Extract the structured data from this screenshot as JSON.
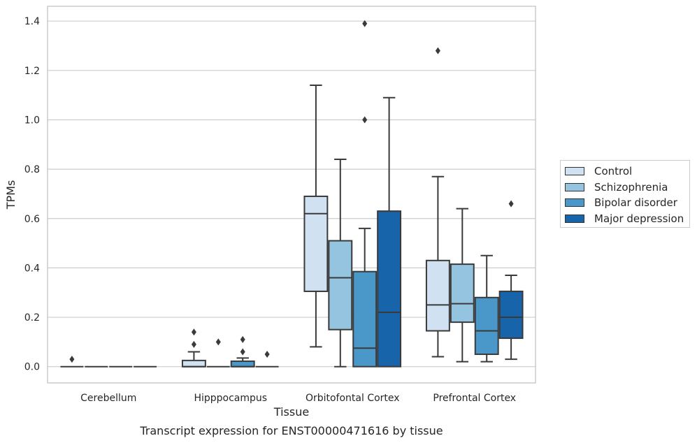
{
  "chart_data": {
    "type": "boxplot",
    "title": "Transcript expression for ENST00000471616 by tissue",
    "xlabel": "Tissue",
    "ylabel": "TPMs",
    "ylim": [
      -0.066,
      1.46
    ],
    "yticks": [
      "0.0",
      "0.2",
      "0.4",
      "0.6",
      "0.8",
      "1.0",
      "1.2",
      "1.4"
    ],
    "grid": true,
    "legend_position": "right",
    "categories": [
      "Cerebellum",
      "Hipppocampus",
      "Orbitofontal Cortex",
      "Prefrontal Cortex"
    ],
    "series": [
      {
        "name": "Control",
        "color": "#d0e1f2",
        "boxes": [
          {
            "q1": 0.0,
            "median": 0.0,
            "q3": 0.0,
            "whisker_low": 0.0,
            "whisker_high": 0.0,
            "outliers": [
              0.03
            ]
          },
          {
            "q1": 0.0,
            "median": 0.0,
            "q3": 0.025,
            "whisker_low": 0.0,
            "whisker_high": 0.06,
            "outliers": [
              0.09,
              0.14
            ]
          },
          {
            "q1": 0.305,
            "median": 0.62,
            "q3": 0.69,
            "whisker_low": 0.08,
            "whisker_high": 1.14,
            "outliers": []
          },
          {
            "q1": 0.145,
            "median": 0.25,
            "q3": 0.43,
            "whisker_low": 0.04,
            "whisker_high": 0.77,
            "outliers": [
              1.28
            ]
          }
        ]
      },
      {
        "name": "Schizophrenia",
        "color": "#94c4df",
        "boxes": [
          {
            "q1": 0.0,
            "median": 0.0,
            "q3": 0.0,
            "whisker_low": 0.0,
            "whisker_high": 0.0,
            "outliers": []
          },
          {
            "q1": 0.0,
            "median": 0.0,
            "q3": 0.0,
            "whisker_low": 0.0,
            "whisker_high": 0.0,
            "outliers": [
              0.1
            ]
          },
          {
            "q1": 0.15,
            "median": 0.36,
            "q3": 0.51,
            "whisker_low": 0.0,
            "whisker_high": 0.84,
            "outliers": []
          },
          {
            "q1": 0.18,
            "median": 0.255,
            "q3": 0.415,
            "whisker_low": 0.02,
            "whisker_high": 0.64,
            "outliers": []
          }
        ]
      },
      {
        "name": "Bipolar disorder",
        "color": "#4a98c9",
        "boxes": [
          {
            "q1": 0.0,
            "median": 0.0,
            "q3": 0.0,
            "whisker_low": 0.0,
            "whisker_high": 0.0,
            "outliers": []
          },
          {
            "q1": 0.0,
            "median": 0.0,
            "q3": 0.022,
            "whisker_low": 0.0,
            "whisker_high": 0.035,
            "outliers": [
              0.06,
              0.11
            ]
          },
          {
            "q1": 0.0,
            "median": 0.075,
            "q3": 0.385,
            "whisker_low": 0.0,
            "whisker_high": 0.56,
            "outliers": [
              1.0,
              1.39
            ]
          },
          {
            "q1": 0.05,
            "median": 0.145,
            "q3": 0.28,
            "whisker_low": 0.02,
            "whisker_high": 0.45,
            "outliers": []
          }
        ]
      },
      {
        "name": "Major depression",
        "color": "#1764ab",
        "boxes": [
          {
            "q1": 0.0,
            "median": 0.0,
            "q3": 0.0,
            "whisker_low": 0.0,
            "whisker_high": 0.0,
            "outliers": []
          },
          {
            "q1": 0.0,
            "median": 0.0,
            "q3": 0.0,
            "whisker_low": 0.0,
            "whisker_high": 0.0,
            "outliers": [
              0.05
            ]
          },
          {
            "q1": 0.0,
            "median": 0.22,
            "q3": 0.63,
            "whisker_low": 0.0,
            "whisker_high": 1.09,
            "outliers": []
          },
          {
            "q1": 0.115,
            "median": 0.2,
            "q3": 0.305,
            "whisker_low": 0.03,
            "whisker_high": 0.37,
            "outliers": [
              0.66
            ]
          }
        ]
      }
    ]
  }
}
